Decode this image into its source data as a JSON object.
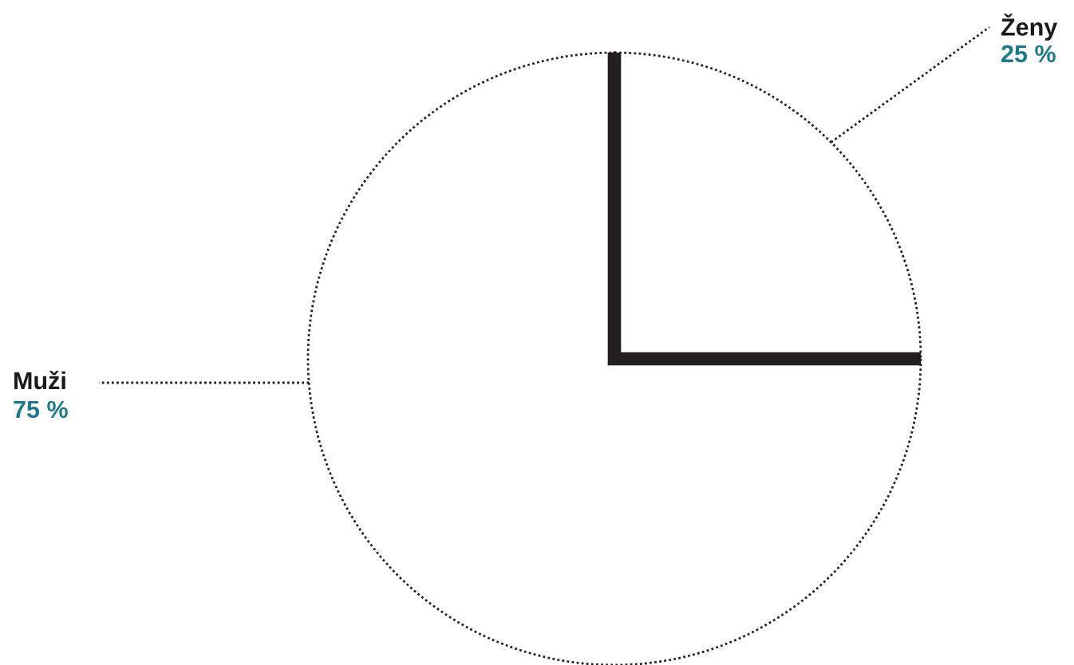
{
  "chart_data": {
    "type": "pie",
    "categories": [
      "Ženy",
      "Muži"
    ],
    "values": [
      25,
      75
    ],
    "colors": [
      "#ffffff",
      "#ffffff"
    ],
    "value_labels": [
      "25 %",
      "75 %"
    ],
    "legend": false
  }
}
